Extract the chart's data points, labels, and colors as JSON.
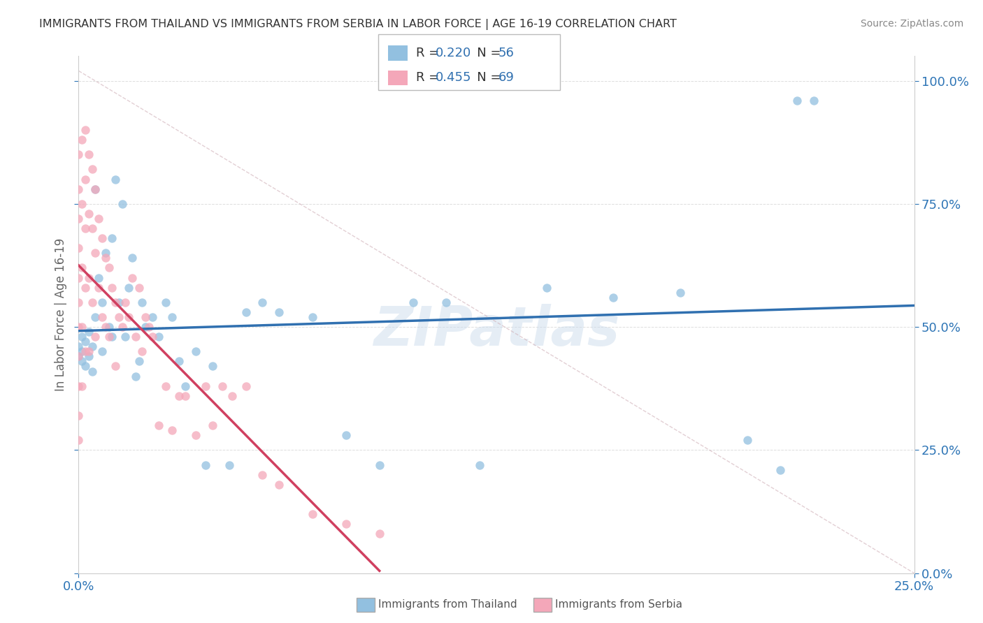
{
  "title": "IMMIGRANTS FROM THAILAND VS IMMIGRANTS FROM SERBIA IN LABOR FORCE | AGE 16-19 CORRELATION CHART",
  "source": "Source: ZipAtlas.com",
  "ylabel": "In Labor Force | Age 16-19",
  "xlim": [
    0.0,
    0.25
  ],
  "ylim": [
    0.0,
    1.05
  ],
  "ytick_labels": [
    "0.0%",
    "25.0%",
    "50.0%",
    "75.0%",
    "100.0%"
  ],
  "ytick_values": [
    0.0,
    0.25,
    0.5,
    0.75,
    1.0
  ],
  "xtick_labels": [
    "0.0%",
    "25.0%"
  ],
  "xtick_values": [
    0.0,
    0.25
  ],
  "thailand_color": "#92c0e0",
  "serbia_color": "#f4a7b9",
  "thailand_line_color": "#3070b0",
  "serbia_line_color": "#d04060",
  "thailand_R": 0.22,
  "thailand_N": 56,
  "serbia_R": 0.455,
  "serbia_N": 69,
  "watermark": "ZIPatlas",
  "thailand_scatter_x": [
    0.0,
    0.0,
    0.001,
    0.001,
    0.001,
    0.002,
    0.002,
    0.003,
    0.003,
    0.004,
    0.004,
    0.005,
    0.005,
    0.006,
    0.007,
    0.007,
    0.008,
    0.009,
    0.01,
    0.01,
    0.011,
    0.012,
    0.013,
    0.014,
    0.015,
    0.016,
    0.017,
    0.018,
    0.019,
    0.02,
    0.022,
    0.024,
    0.026,
    0.028,
    0.03,
    0.032,
    0.035,
    0.038,
    0.04,
    0.045,
    0.05,
    0.055,
    0.06,
    0.07,
    0.08,
    0.09,
    0.1,
    0.11,
    0.12,
    0.14,
    0.16,
    0.18,
    0.2,
    0.21,
    0.215,
    0.22
  ],
  "thailand_scatter_y": [
    0.44,
    0.46,
    0.43,
    0.48,
    0.45,
    0.42,
    0.47,
    0.44,
    0.49,
    0.41,
    0.46,
    0.52,
    0.78,
    0.6,
    0.45,
    0.55,
    0.65,
    0.5,
    0.48,
    0.68,
    0.8,
    0.55,
    0.75,
    0.48,
    0.58,
    0.64,
    0.4,
    0.43,
    0.55,
    0.5,
    0.52,
    0.48,
    0.55,
    0.52,
    0.43,
    0.38,
    0.45,
    0.22,
    0.42,
    0.22,
    0.53,
    0.55,
    0.53,
    0.52,
    0.28,
    0.22,
    0.55,
    0.55,
    0.22,
    0.58,
    0.56,
    0.57,
    0.27,
    0.21,
    0.96,
    0.96
  ],
  "serbia_scatter_x": [
    0.0,
    0.0,
    0.0,
    0.0,
    0.0,
    0.0,
    0.0,
    0.0,
    0.0,
    0.0,
    0.0,
    0.001,
    0.001,
    0.001,
    0.001,
    0.001,
    0.002,
    0.002,
    0.002,
    0.002,
    0.002,
    0.003,
    0.003,
    0.003,
    0.003,
    0.004,
    0.004,
    0.004,
    0.005,
    0.005,
    0.005,
    0.006,
    0.006,
    0.007,
    0.007,
    0.008,
    0.008,
    0.009,
    0.009,
    0.01,
    0.011,
    0.011,
    0.012,
    0.013,
    0.014,
    0.015,
    0.016,
    0.017,
    0.018,
    0.019,
    0.02,
    0.021,
    0.022,
    0.024,
    0.026,
    0.028,
    0.03,
    0.032,
    0.035,
    0.038,
    0.04,
    0.043,
    0.046,
    0.05,
    0.055,
    0.06,
    0.07,
    0.08,
    0.09
  ],
  "serbia_scatter_y": [
    0.85,
    0.78,
    0.72,
    0.66,
    0.6,
    0.55,
    0.5,
    0.44,
    0.38,
    0.32,
    0.27,
    0.88,
    0.75,
    0.62,
    0.5,
    0.38,
    0.9,
    0.8,
    0.7,
    0.58,
    0.45,
    0.85,
    0.73,
    0.6,
    0.45,
    0.82,
    0.7,
    0.55,
    0.78,
    0.65,
    0.48,
    0.72,
    0.58,
    0.68,
    0.52,
    0.64,
    0.5,
    0.62,
    0.48,
    0.58,
    0.55,
    0.42,
    0.52,
    0.5,
    0.55,
    0.52,
    0.6,
    0.48,
    0.58,
    0.45,
    0.52,
    0.5,
    0.48,
    0.3,
    0.38,
    0.29,
    0.36,
    0.36,
    0.28,
    0.38,
    0.3,
    0.38,
    0.36,
    0.38,
    0.2,
    0.18,
    0.12,
    0.1,
    0.08
  ],
  "legend_R_color": "#3070b0",
  "legend_N_color": "#3070b0",
  "title_color": "#333333",
  "source_color": "#888888",
  "axis_color": "#2e75b6",
  "ylabel_color": "#666666"
}
